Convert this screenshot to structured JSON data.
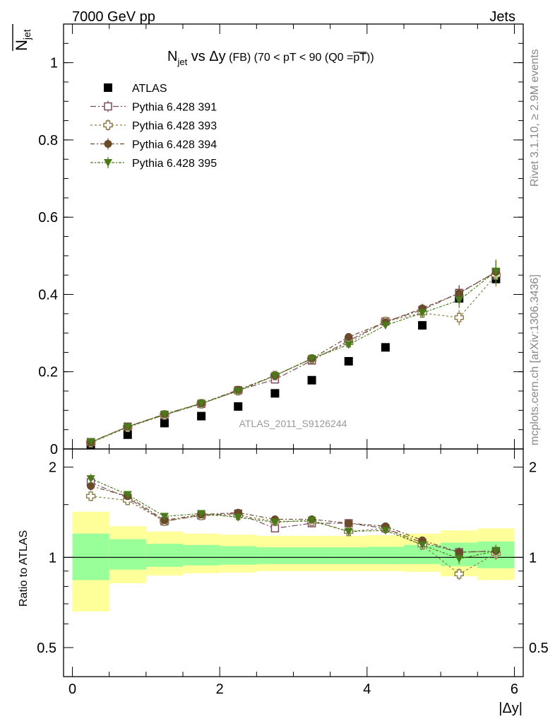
{
  "header": {
    "energy_label": "7000 GeV pp",
    "category_label": "Jets"
  },
  "side_labels": {
    "rivet": "Rivet 3.1.10, ≥ 2.9M events",
    "mcplots": "mcplots.cern.ch [arXiv:1306.3436]"
  },
  "watermark": "ATLAS_2011_S9126244",
  "colors": {
    "data": "#000000",
    "p391": "#7a4a5a",
    "p393": "#8a7a4a",
    "p394": "#6b4a2a",
    "p395": "#4a7a1a",
    "band_outer": "#ffff99",
    "band_inner": "#99ff99"
  },
  "chart_data": [
    {
      "type": "scatter",
      "title_main": "N",
      "title_sub": "jet",
      "title_rest": " vs Δy",
      "title_small": " (FB) (70 < pT <  90 (Q0 =",
      "title_over": "pT",
      "title_end": "))",
      "ylabel_main": "N",
      "ylabel_sub": "jet",
      "xlabel": "",
      "ylim": [
        0,
        1.1
      ],
      "yticks": [
        0,
        0.2,
        0.4,
        0.6,
        0.8,
        1
      ],
      "ytick_labels": [
        "0",
        "0.2",
        "0.4",
        "0.6",
        "0.8",
        "1"
      ],
      "x": [
        0.25,
        0.75,
        1.25,
        1.75,
        2.25,
        2.75,
        3.25,
        3.75,
        4.25,
        4.75,
        5.25,
        5.75
      ],
      "series": [
        {
          "name": "ATLAS",
          "key": "data",
          "marker": "square-filled",
          "values": [
            0.01,
            0.037,
            0.067,
            0.085,
            0.11,
            0.144,
            0.178,
            0.227,
            0.263,
            0.32,
            0.39,
            0.44
          ],
          "errors": [
            0.003,
            0.003,
            0.004,
            0.004,
            0.005,
            0.005,
            0.006,
            0.007,
            0.007,
            0.008,
            0.012,
            0.012
          ]
        },
        {
          "name": "Pythia 6.428 391",
          "key": "p391",
          "marker": "square-open",
          "values": [
            0.018,
            0.058,
            0.088,
            0.117,
            0.152,
            0.18,
            0.229,
            0.28,
            0.33,
            0.36,
            0.404,
            0.458
          ],
          "errors": [
            0.003,
            0.004,
            0.004,
            0.005,
            0.005,
            0.006,
            0.006,
            0.008,
            0.01,
            0.012,
            0.02,
            0.03
          ]
        },
        {
          "name": "Pythia 6.428 393",
          "key": "p393",
          "marker": "cross-open",
          "values": [
            0.016,
            0.056,
            0.088,
            0.117,
            0.151,
            0.19,
            0.233,
            0.275,
            0.33,
            0.352,
            0.34,
            0.45
          ],
          "errors": [
            0.003,
            0.004,
            0.004,
            0.005,
            0.005,
            0.006,
            0.006,
            0.008,
            0.01,
            0.012,
            0.02,
            0.03
          ]
        },
        {
          "name": "Pythia 6.428 394",
          "key": "p394",
          "marker": "circle-filled",
          "values": [
            0.017,
            0.058,
            0.09,
            0.118,
            0.153,
            0.19,
            0.234,
            0.29,
            0.328,
            0.364,
            0.403,
            0.458
          ],
          "errors": [
            0.003,
            0.004,
            0.004,
            0.005,
            0.005,
            0.006,
            0.006,
            0.008,
            0.01,
            0.012,
            0.02,
            0.03
          ]
        },
        {
          "name": "Pythia 6.428 395",
          "key": "p395",
          "marker": "triangle-down-filled",
          "values": [
            0.018,
            0.057,
            0.09,
            0.118,
            0.15,
            0.19,
            0.234,
            0.27,
            0.32,
            0.352,
            0.385,
            0.46
          ],
          "errors": [
            0.003,
            0.004,
            0.004,
            0.005,
            0.005,
            0.006,
            0.006,
            0.008,
            0.01,
            0.012,
            0.02,
            0.03
          ]
        }
      ],
      "legend_position": "top-left"
    },
    {
      "type": "scatter",
      "ylabel": "Ratio to ATLAS",
      "xlabel": "|Δy|",
      "xlim": [
        -0.12,
        6.12
      ],
      "ylim": [
        0.4,
        2.3
      ],
      "y_scale": "log",
      "yticks": [
        0.5,
        1,
        2
      ],
      "ytick_labels": [
        "0.5",
        "1",
        "2"
      ],
      "xticks": [
        0,
        2,
        4,
        6
      ],
      "xtick_labels": [
        "0",
        "2",
        "4",
        "6"
      ],
      "x": [
        0.25,
        0.75,
        1.25,
        1.75,
        2.25,
        2.75,
        3.25,
        3.75,
        4.25,
        4.75,
        5.25,
        5.75
      ],
      "band_edges": [
        0,
        0.5,
        1,
        1.5,
        2,
        2.5,
        3,
        3.5,
        4,
        4.5,
        5,
        5.5,
        6
      ],
      "band_inner": [
        [
          0.84,
          1.2
        ],
        [
          0.91,
          1.15
        ],
        [
          0.93,
          1.11
        ],
        [
          0.94,
          1.1
        ],
        [
          0.945,
          1.09
        ],
        [
          0.95,
          1.08
        ],
        [
          0.95,
          1.08
        ],
        [
          0.95,
          1.08
        ],
        [
          0.95,
          1.085
        ],
        [
          0.95,
          1.1
        ],
        [
          0.935,
          1.12
        ],
        [
          0.92,
          1.13
        ]
      ],
      "band_outer": [
        [
          0.66,
          1.42
        ],
        [
          0.82,
          1.27
        ],
        [
          0.87,
          1.22
        ],
        [
          0.885,
          1.2
        ],
        [
          0.89,
          1.19
        ],
        [
          0.9,
          1.18
        ],
        [
          0.9,
          1.18
        ],
        [
          0.9,
          1.18
        ],
        [
          0.9,
          1.185
        ],
        [
          0.895,
          1.2
        ],
        [
          0.865,
          1.23
        ],
        [
          0.84,
          1.25
        ]
      ],
      "series": [
        {
          "name": "Pythia 6.428 391",
          "key": "p391",
          "marker": "square-open",
          "values": [
            1.78,
            1.58,
            1.32,
            1.38,
            1.4,
            1.25,
            1.3,
            1.3,
            1.25,
            1.12,
            1.04,
            1.05
          ],
          "errors": [
            0.06,
            0.04,
            0.03,
            0.03,
            0.03,
            0.03,
            0.03,
            0.03,
            0.03,
            0.03,
            0.04,
            0.05
          ]
        },
        {
          "name": "Pythia 6.428 393",
          "key": "p393",
          "marker": "cross-open",
          "values": [
            1.6,
            1.55,
            1.32,
            1.38,
            1.38,
            1.32,
            1.32,
            1.22,
            1.25,
            1.1,
            0.88,
            1.03
          ],
          "errors": [
            0.06,
            0.04,
            0.03,
            0.03,
            0.03,
            0.03,
            0.03,
            0.03,
            0.03,
            0.03,
            0.04,
            0.05
          ]
        },
        {
          "name": "Pythia 6.428 394",
          "key": "p394",
          "marker": "circle-filled",
          "values": [
            1.73,
            1.6,
            1.33,
            1.39,
            1.41,
            1.34,
            1.34,
            1.3,
            1.27,
            1.14,
            1.04,
            1.05
          ],
          "errors": [
            0.06,
            0.04,
            0.03,
            0.03,
            0.03,
            0.03,
            0.03,
            0.03,
            0.03,
            0.03,
            0.04,
            0.05
          ]
        },
        {
          "name": "Pythia 6.428 395",
          "key": "p395",
          "marker": "triangle-down-filled",
          "values": [
            1.83,
            1.62,
            1.37,
            1.4,
            1.36,
            1.31,
            1.33,
            1.22,
            1.23,
            1.1,
            0.99,
            1.05
          ],
          "errors": [
            0.07,
            0.04,
            0.03,
            0.03,
            0.03,
            0.03,
            0.03,
            0.03,
            0.03,
            0.03,
            0.04,
            0.05
          ]
        }
      ]
    }
  ]
}
